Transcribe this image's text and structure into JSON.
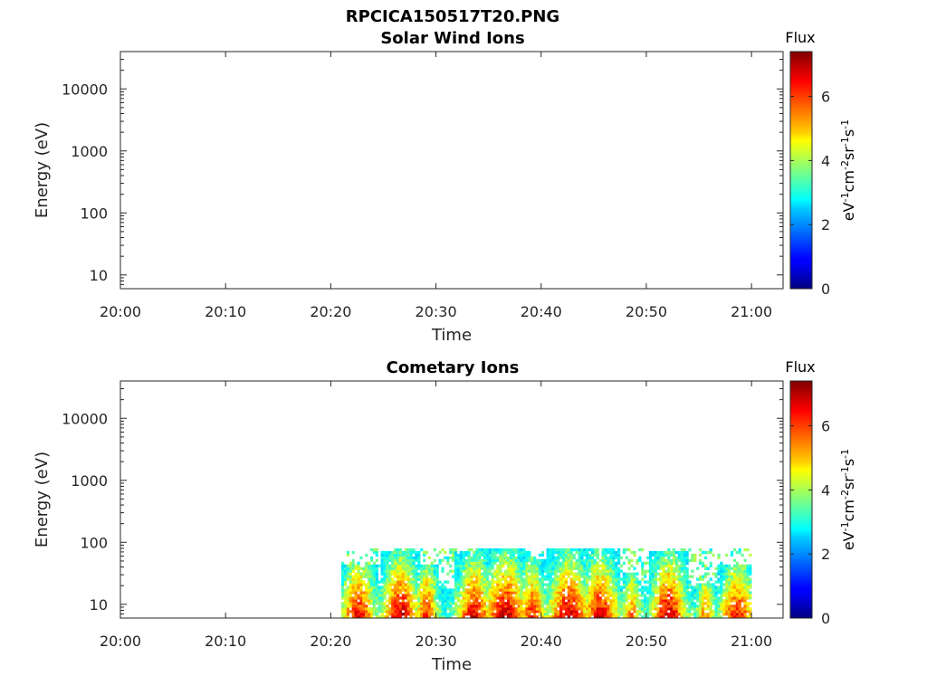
{
  "figure": {
    "title": "RPCICA150517T20.PNG"
  },
  "chart_data": [
    {
      "type": "heatmap",
      "title": "Solar Wind Ions",
      "xlabel": "Time",
      "ylabel": "Energy (eV)",
      "x_ticks": [
        "20:00",
        "20:10",
        "20:20",
        "20:30",
        "20:40",
        "20:50",
        "21:00"
      ],
      "x_range_minutes": [
        0,
        63
      ],
      "y_scale": "log",
      "y_ticks": [
        10,
        100,
        1000,
        10000
      ],
      "y_tick_labels": [
        "10",
        "100",
        "1000",
        "10000"
      ],
      "y_range": [
        6,
        40000
      ],
      "colorbar": {
        "title": "Flux",
        "label": "eV-1cm-2sr-1s-1",
        "range": [
          0,
          7.4
        ],
        "ticks": [
          0,
          2,
          4,
          6
        ],
        "colormap": "jet"
      },
      "data": []
    },
    {
      "type": "heatmap",
      "title": "Cometary Ions",
      "xlabel": "Time",
      "ylabel": "Energy (eV)",
      "x_ticks": [
        "20:00",
        "20:10",
        "20:20",
        "20:30",
        "20:40",
        "20:50",
        "21:00"
      ],
      "x_range_minutes": [
        0,
        63
      ],
      "y_scale": "log",
      "y_ticks": [
        10,
        100,
        1000,
        10000
      ],
      "y_tick_labels": [
        "10",
        "100",
        "1000",
        "10000"
      ],
      "y_range": [
        6,
        40000
      ],
      "colorbar": {
        "title": "Flux",
        "label": "eV-1cm-2sr-1s-1",
        "range": [
          0,
          7.4
        ],
        "ticks": [
          0,
          2,
          4,
          6
        ],
        "colormap": "jet"
      },
      "data_extent": {
        "start": "20:21",
        "end": "21:00",
        "energy_min": 6,
        "energy_max": 80
      },
      "data_note": "flux concentrated below 80 eV between 20:21 and 21:00, peaks near 6-7 in bursts",
      "bursts": [
        {
          "center_min": 22.5,
          "width_min": 1.5,
          "peak": 6.6,
          "top_ev": 40
        },
        {
          "center_min": 26.5,
          "width_min": 1.6,
          "peak": 7.0,
          "top_ev": 70
        },
        {
          "center_min": 29.0,
          "width_min": 1.0,
          "peak": 6.2,
          "top_ev": 40
        },
        {
          "center_min": 33.5,
          "width_min": 1.5,
          "peak": 6.8,
          "top_ev": 70
        },
        {
          "center_min": 36.5,
          "width_min": 2.0,
          "peak": 7.0,
          "top_ev": 80
        },
        {
          "center_min": 39.0,
          "width_min": 1.2,
          "peak": 6.3,
          "top_ev": 50
        },
        {
          "center_min": 42.5,
          "width_min": 1.8,
          "peak": 7.0,
          "top_ev": 80
        },
        {
          "center_min": 45.5,
          "width_min": 1.6,
          "peak": 6.8,
          "top_ev": 80
        },
        {
          "center_min": 48.5,
          "width_min": 0.8,
          "peak": 5.6,
          "top_ev": 30
        },
        {
          "center_min": 52.0,
          "width_min": 1.5,
          "peak": 7.0,
          "top_ev": 70
        },
        {
          "center_min": 55.5,
          "width_min": 0.8,
          "peak": 5.4,
          "top_ev": 20
        },
        {
          "center_min": 58.5,
          "width_min": 1.5,
          "peak": 6.4,
          "top_ev": 40
        }
      ]
    }
  ]
}
